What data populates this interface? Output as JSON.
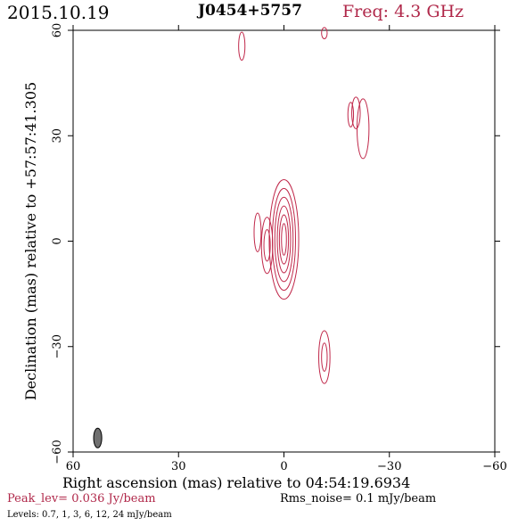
{
  "header": {
    "date": "2015.10.19",
    "source": "J0454+5757",
    "freq": "Freq: 4.3 GHz"
  },
  "footer": {
    "peak": "Peak_lev=  0.036 Jy/beam",
    "rms": "Rms_noise=  0.1 mJy/beam",
    "levels": "Levels: 0.7,   1,   3,   6,  12,  24 mJy/beam"
  },
  "colors": {
    "contour": "#c0284a",
    "title_red": "#b0284a",
    "beam_fill": "#707070",
    "axis": "#000000"
  },
  "chart_data": {
    "type": "contour",
    "xlabel": "Right ascension (mas) relative to 04:54:19.6934",
    "ylabel": "Declination (mas) relative to +57:57:41.305",
    "xlim": [
      60,
      -60
    ],
    "ylim": [
      -60,
      60
    ],
    "xticks": [
      60,
      30,
      0,
      -30,
      -60
    ],
    "yticks": [
      60,
      30,
      0,
      -30,
      -60
    ],
    "xtick_labels": [
      "60",
      "30",
      "0",
      "−30",
      "−60"
    ],
    "ytick_labels": [
      "60",
      "30",
      "0",
      "−30",
      "−60"
    ],
    "contour_levels_mJy": [
      0.7,
      1,
      3,
      6,
      12,
      24
    ],
    "beam": {
      "x": 53,
      "y": -56,
      "major": 5.6,
      "minor": 1.8,
      "pa_deg": 0
    },
    "components": [
      {
        "name": "core",
        "x": 0,
        "y": 0.5,
        "rings": [
          [
            4.2,
            17.0
          ],
          [
            3.3,
            14.5
          ],
          [
            2.6,
            12.0
          ],
          [
            1.9,
            9.5
          ],
          [
            1.3,
            7.0
          ],
          [
            0.7,
            4.5
          ]
        ]
      },
      {
        "name": "west-knot-a",
        "x": 4.8,
        "y": -1.2,
        "rings": [
          [
            1.6,
            8.0
          ],
          [
            0.9,
            4.5
          ]
        ]
      },
      {
        "name": "west-knot-b",
        "x": 7.5,
        "y": 2.5,
        "rings": [
          [
            1.0,
            5.5
          ]
        ]
      },
      {
        "name": "south-blob",
        "x": -11.5,
        "y": -33.0,
        "rings": [
          [
            1.6,
            7.5
          ],
          [
            0.8,
            4.0
          ]
        ]
      },
      {
        "name": "east-blob",
        "x": -22.5,
        "y": 32.0,
        "rings": [
          [
            1.7,
            8.5
          ]
        ]
      },
      {
        "name": "east-blob-2",
        "x": -20.5,
        "y": 36.5,
        "rings": [
          [
            1.2,
            4.5
          ]
        ]
      },
      {
        "name": "east-small",
        "x": -19.0,
        "y": 36.0,
        "rings": [
          [
            0.8,
            3.5
          ]
        ]
      },
      {
        "name": "north-blob",
        "x": 12.0,
        "y": 55.5,
        "rings": [
          [
            0.9,
            4.0
          ]
        ]
      },
      {
        "name": "top-edge",
        "x": -11.5,
        "y": 59.2,
        "rings": [
          [
            0.8,
            1.6
          ]
        ]
      }
    ]
  }
}
